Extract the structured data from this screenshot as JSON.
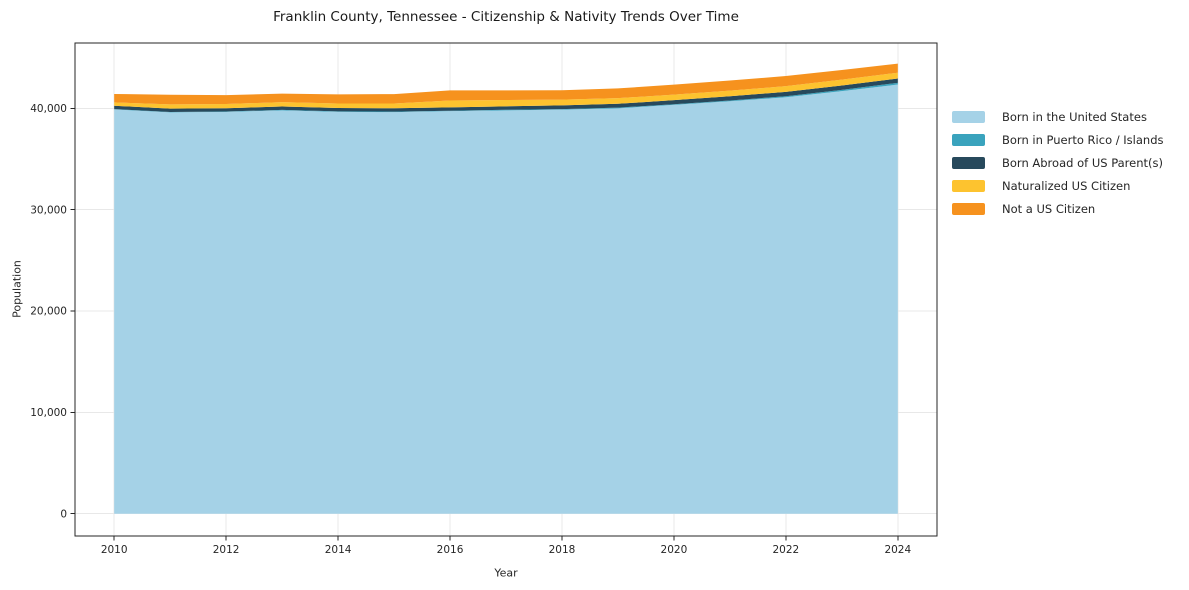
{
  "chart_data": {
    "type": "area",
    "stacked": true,
    "title": "Franklin County, Tennessee - Citizenship & Nativity Trends Over Time",
    "xlabel": "Year",
    "ylabel": "Population",
    "x": [
      2010,
      2011,
      2012,
      2013,
      2014,
      2015,
      2016,
      2017,
      2018,
      2019,
      2020,
      2021,
      2022,
      2023,
      2024
    ],
    "series": [
      {
        "name": "Born in the United States",
        "color": "#a5d2e7",
        "values": [
          39900,
          39600,
          39650,
          39800,
          39650,
          39630,
          39730,
          39800,
          39870,
          40000,
          40350,
          40700,
          41100,
          41700,
          42350
        ]
      },
      {
        "name": "Born in Puerto Rico / Islands",
        "color": "#3aa3bd",
        "values": [
          30,
          40,
          40,
          50,
          50,
          50,
          40,
          60,
          60,
          70,
          60,
          80,
          100,
          130,
          170
        ]
      },
      {
        "name": "Born Abroad of US Parent(s)",
        "color": "#27495c",
        "values": [
          330,
          330,
          320,
          330,
          330,
          330,
          330,
          340,
          360,
          380,
          400,
          420,
          430,
          430,
          430
        ]
      },
      {
        "name": "Naturalized US Citizen",
        "color": "#fdc32f",
        "values": [
          330,
          420,
          420,
          430,
          450,
          470,
          670,
          620,
          570,
          560,
          540,
          550,
          560,
          570,
          570
        ]
      },
      {
        "name": "Not a US Citizen",
        "color": "#f6921e",
        "values": [
          830,
          950,
          880,
          840,
          900,
          930,
          1000,
          950,
          930,
          960,
          990,
          1000,
          1000,
          950,
          900
        ]
      }
    ],
    "x_ticks": [
      2010,
      2012,
      2014,
      2016,
      2018,
      2020,
      2022,
      2024
    ],
    "x_tick_labels": [
      "2010",
      "2012",
      "2014",
      "2016",
      "2018",
      "2020",
      "2022",
      "2024"
    ],
    "y_tick_values": [
      0,
      10000,
      20000,
      30000,
      40000
    ],
    "y_tick_labels": [
      "0",
      "10,000",
      "20,000",
      "30,000",
      "40,000"
    ],
    "xlim": [
      2009.3,
      2024.7
    ],
    "ylim": [
      -2200,
      46450
    ],
    "grid": true,
    "legend_position": "right-outside"
  },
  "colors": {
    "background": "#ffffff",
    "plot_border": "#262626",
    "gridline": "#e8e8e8",
    "tick_text": "#262626"
  }
}
